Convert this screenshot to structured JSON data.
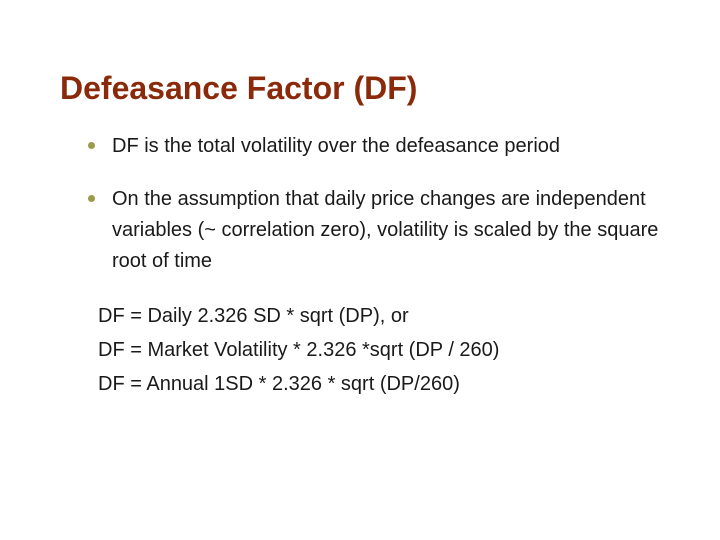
{
  "colors": {
    "title": "#8a2a0a",
    "bullet_dot": "#9a9a4a",
    "body_text": "#1a1a1a",
    "background": "#ffffff"
  },
  "title": "Defeasance Factor (DF)",
  "bullets": [
    "DF is the total volatility over the defeasance period",
    "On the assumption that daily price changes are independent variables (~ correlation zero), volatility is scaled by the square root of time"
  ],
  "formulas": [
    "DF = Daily 2.326 SD * sqrt (DP), or",
    "DF = Market Volatility * 2.326 *sqrt (DP / 260)",
    "DF = Annual 1SD * 2.326 * sqrt (DP/260)"
  ],
  "fontsizes": {
    "title_pt": 32,
    "body_pt": 20
  }
}
